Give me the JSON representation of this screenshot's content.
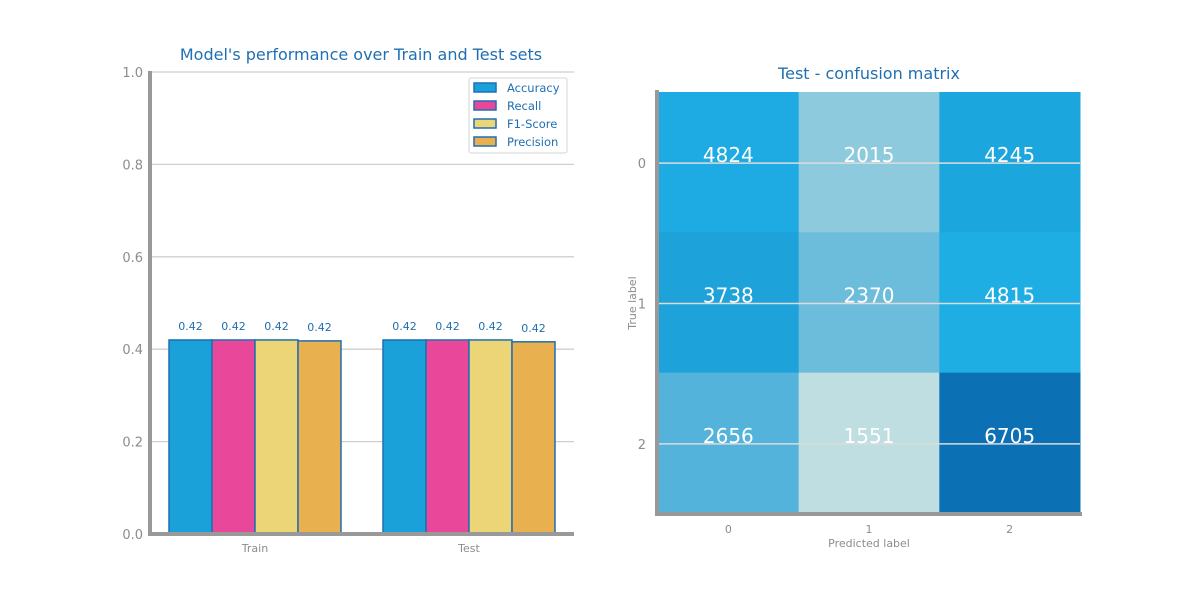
{
  "chart_data": [
    {
      "type": "bar",
      "title": "Model's performance over Train and Test sets",
      "categories": [
        "Train",
        "Test"
      ],
      "series": [
        {
          "name": "Accuracy",
          "values": [
            0.42,
            0.42
          ],
          "labels": [
            "0.42",
            "0.42"
          ],
          "color": "#1aa1d9"
        },
        {
          "name": "Recall",
          "values": [
            0.42,
            0.42
          ],
          "labels": [
            "0.42",
            "0.42"
          ],
          "color": "#e8479a"
        },
        {
          "name": "F1-Score",
          "values": [
            0.42,
            0.42
          ],
          "labels": [
            "0.42",
            "0.42"
          ],
          "color": "#ecd577"
        },
        {
          "name": "Precision",
          "values": [
            0.418,
            0.416
          ],
          "labels": [
            "0.42",
            "0.42"
          ],
          "color": "#e8b04f"
        }
      ],
      "ylim": [
        0,
        1
      ],
      "yticks": [
        "0.0",
        "0.2",
        "0.4",
        "0.6",
        "0.8",
        "1.0"
      ],
      "grid": true,
      "legend_position": "top-right",
      "bar_edge_color": "#1f6fb2"
    },
    {
      "type": "heatmap",
      "title": "Test - confusion matrix",
      "xlabel": "Predicted label",
      "ylabel": "True label",
      "x_categories": [
        "0",
        "1",
        "2"
      ],
      "y_categories": [
        "0",
        "1",
        "2"
      ],
      "values": [
        [
          4824,
          2015,
          4245
        ],
        [
          3738,
          2370,
          4815
        ],
        [
          2656,
          1551,
          6705
        ]
      ],
      "cell_colors": [
        [
          "#1eaae2",
          "#8ecadd",
          "#1ca6de"
        ],
        [
          "#1ea2da",
          "#6cbcdc",
          "#1eaee4"
        ],
        [
          "#53b3db",
          "#bedee2",
          "#0c70b5"
        ]
      ]
    }
  ]
}
